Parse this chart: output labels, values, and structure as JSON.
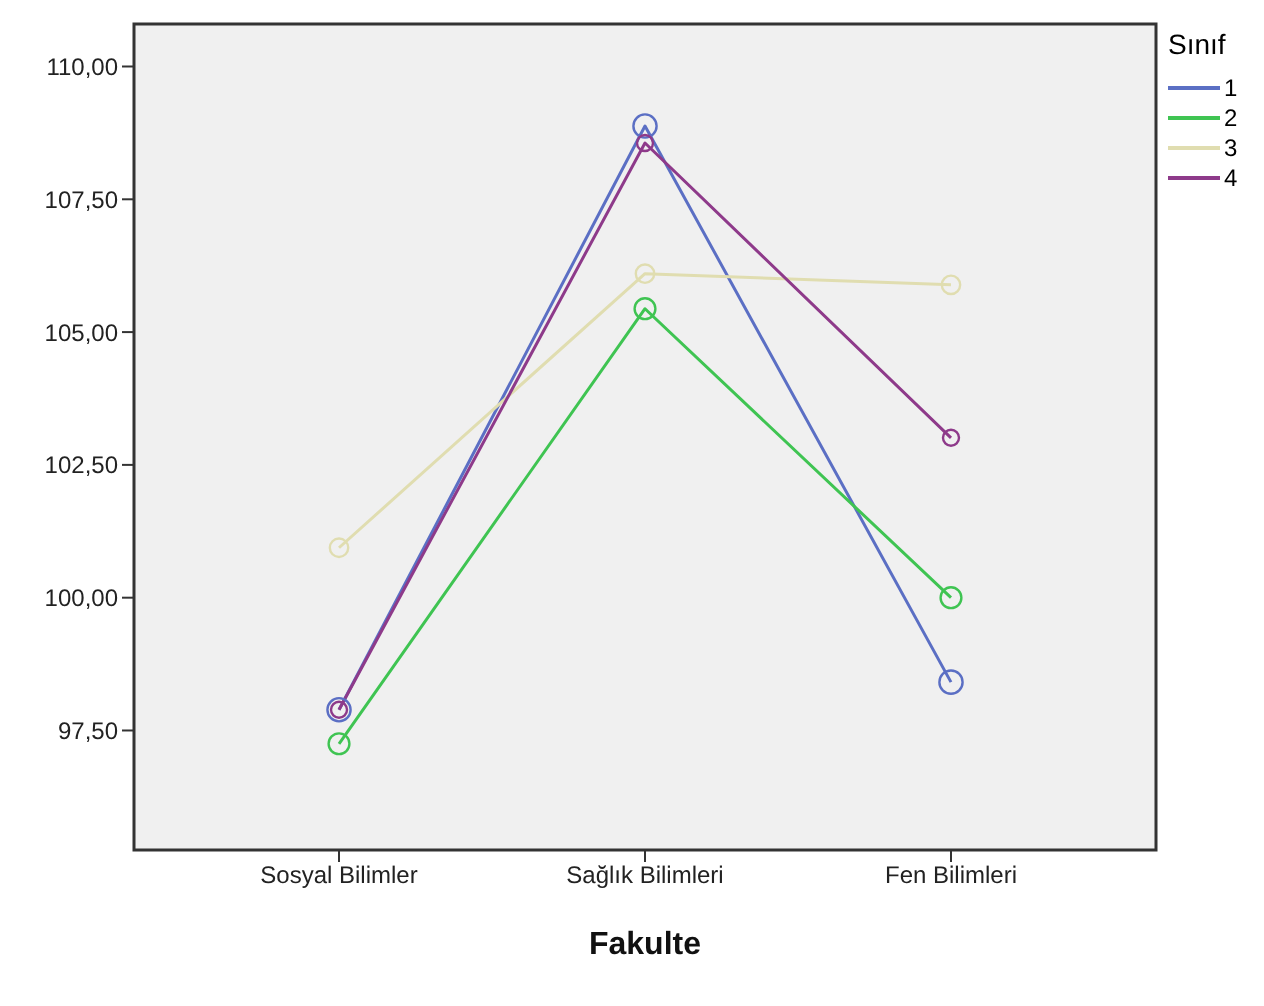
{
  "chart_data": {
    "type": "line",
    "xlabel": "Fakulte",
    "legend_title": "Sınıf",
    "categories": [
      "Sosyal Bilimler",
      "Sağlık Bilimleri",
      "Fen Bilimleri"
    ],
    "series": [
      {
        "name": "1",
        "color": "#5b6fc4",
        "values": [
          97.89,
          108.88,
          98.41
        ]
      },
      {
        "name": "2",
        "color": "#3fc452",
        "values": [
          97.25,
          105.44,
          100.0
        ]
      },
      {
        "name": "3",
        "color": "#e0ddb0",
        "values": [
          100.94,
          106.1,
          105.89
        ]
      },
      {
        "name": "4",
        "color": "#8e3a8a",
        "values": [
          97.89,
          108.56,
          103.01
        ]
      }
    ],
    "ylim": [
      95.25,
      110.8
    ],
    "yticks": [
      {
        "value": 97.5,
        "label": "97,50"
      },
      {
        "value": 100,
        "label": "100,00"
      },
      {
        "value": 102.5,
        "label": "102,50"
      },
      {
        "value": 105,
        "label": "105,00"
      },
      {
        "value": 107.5,
        "label": "107,50"
      },
      {
        "value": 110,
        "label": "110,00"
      }
    ],
    "marker": "circle",
    "legend": "top right"
  }
}
